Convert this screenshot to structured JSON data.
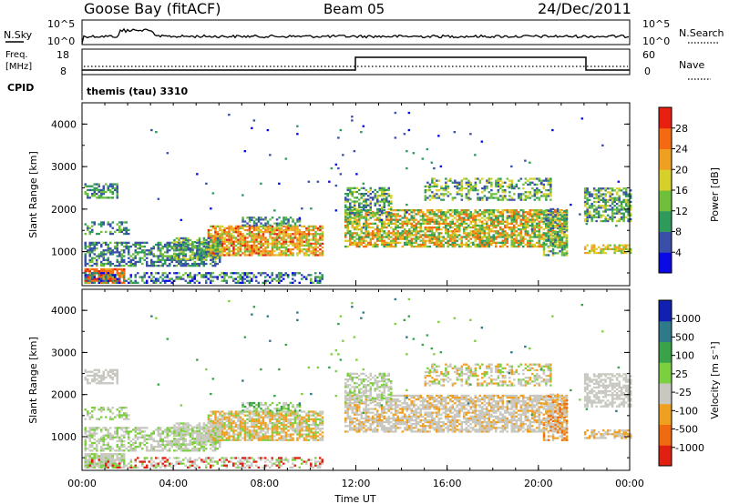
{
  "header": {
    "station": "Goose Bay (fitACF)",
    "beam": "Beam 05",
    "date": "24/Dec/2011"
  },
  "status_panels": {
    "nsky_label": "N.Sky",
    "nsky_ticks": [
      "10^5",
      "10^0"
    ],
    "nsearch_label": "N.Search",
    "nsearch_ticks": [
      "10^5",
      "10^0"
    ],
    "freq_label_1": "Freq.",
    "freq_label_2": "[MHz]",
    "freq_ticks": [
      "18",
      "8"
    ],
    "nave_label": "Nave",
    "nave_ticks": [
      "60",
      "0"
    ],
    "cpid_label": "CPID",
    "cpid_value": "themis (tau) 3310"
  },
  "chart_data": [
    {
      "type": "heatmap",
      "panel": "power",
      "ylabel": "Slant Range [km]",
      "yticks": [
        "1000",
        "2000",
        "3000",
        "4000"
      ],
      "ylim": [
        200,
        4500
      ],
      "xlim": [
        0,
        24
      ],
      "colorbar_label": "Power [dB]",
      "colorbar_ticks": [
        "4",
        "8",
        "12",
        "16",
        "20",
        "24",
        "28"
      ],
      "colors": [
        "#0a0ae6",
        "#3a50a8",
        "#2e9a5c",
        "#6fbf3c",
        "#d7d02a",
        "#f0a020",
        "#f46a10",
        "#e82010"
      ]
    },
    {
      "type": "heatmap",
      "panel": "velocity",
      "ylabel": "Slant Range [km]",
      "yticks": [
        "1000",
        "2000",
        "3000",
        "4000"
      ],
      "ylim": [
        200,
        4500
      ],
      "xlim": [
        0,
        24
      ],
      "xlabel": "Time UT",
      "xticks": [
        "00:00",
        "04:00",
        "08:00",
        "12:00",
        "16:00",
        "20:00",
        "00:00"
      ],
      "colorbar_label": "Velocity [m s⁻¹]",
      "colorbar_ticks": [
        "1000",
        "500",
        "100",
        "25",
        "-25",
        "-100",
        "-500",
        "-1000"
      ],
      "colors": [
        "#1020b0",
        "#2f7a8a",
        "#3aa34a",
        "#7cd040",
        "#c8c8c0",
        "#f0a020",
        "#f06a10",
        "#e02010"
      ]
    }
  ]
}
